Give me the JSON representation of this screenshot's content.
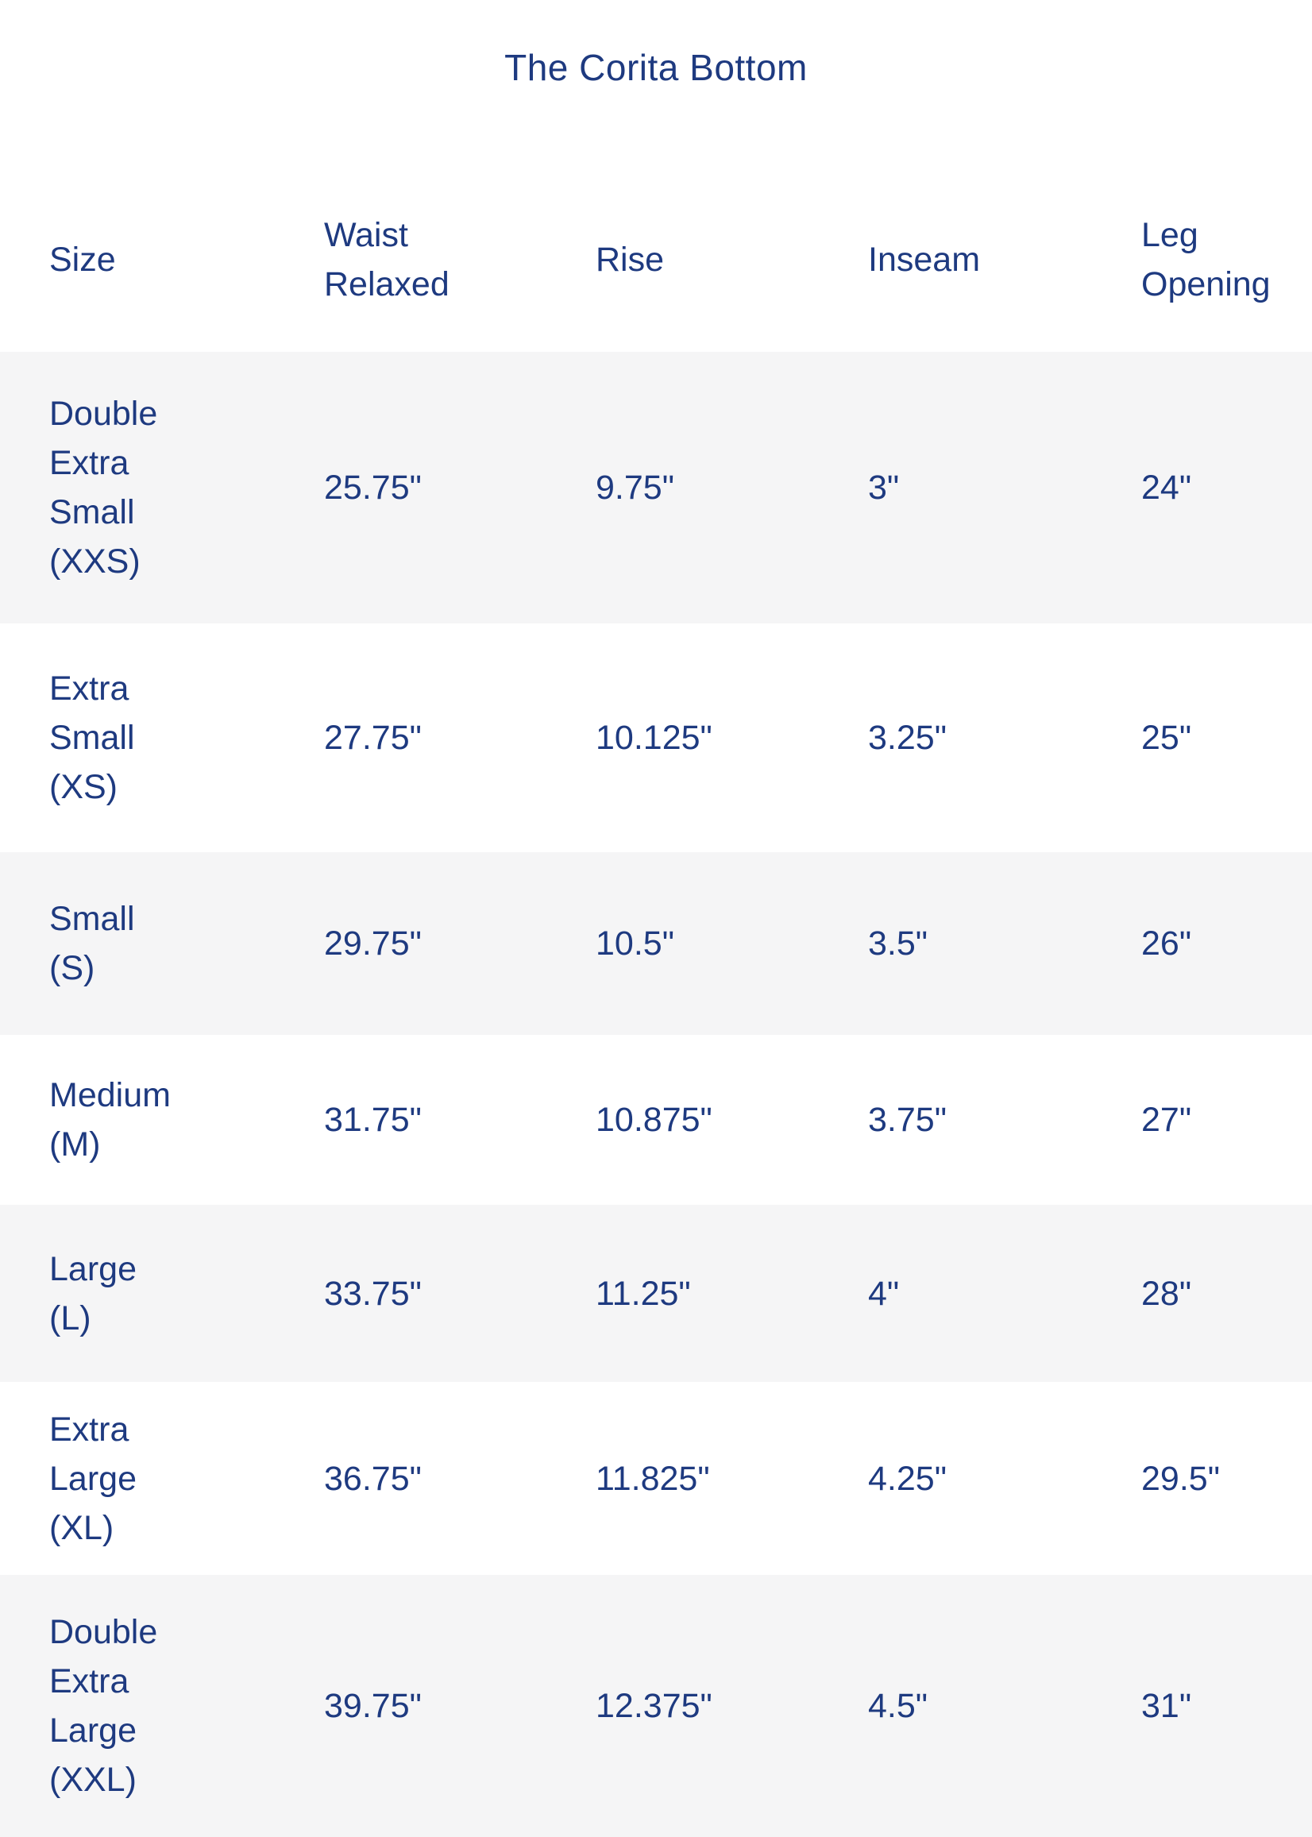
{
  "title": "The Corita Bottom",
  "colors": {
    "text_navy": "#1e3a80",
    "stripe_gray": "#f5f5f6",
    "background": "#ffffff"
  },
  "table": {
    "columns": [
      {
        "label_lines": [
          "Size"
        ]
      },
      {
        "label_lines": [
          "Waist",
          "Relaxed"
        ]
      },
      {
        "label_lines": [
          "Rise"
        ]
      },
      {
        "label_lines": [
          "Inseam"
        ]
      },
      {
        "label_lines": [
          "Leg",
          "Opening"
        ]
      }
    ],
    "rows": [
      {
        "size_lines": [
          "Double",
          "Extra",
          "Small",
          "(XXS)"
        ],
        "waist_relaxed": "25.75\"",
        "rise": "9.75\"",
        "inseam": "3\"",
        "leg_opening": "24\""
      },
      {
        "size_lines": [
          "Extra",
          "Small",
          "(XS)"
        ],
        "waist_relaxed": "27.75\"",
        "rise": "10.125\"",
        "inseam": "3.25\"",
        "leg_opening": "25\""
      },
      {
        "size_lines": [
          "Small",
          "(S)"
        ],
        "waist_relaxed": "29.75\"",
        "rise": "10.5\"",
        "inseam": "3.5\"",
        "leg_opening": "26\""
      },
      {
        "size_lines": [
          "Medium",
          "(M)"
        ],
        "waist_relaxed": "31.75\"",
        "rise": "10.875\"",
        "inseam": "3.75\"",
        "leg_opening": "27\""
      },
      {
        "size_lines": [
          "Large",
          "(L)"
        ],
        "waist_relaxed": "33.75\"",
        "rise": "11.25\"",
        "inseam": "4\"",
        "leg_opening": "28\""
      },
      {
        "size_lines": [
          "Extra",
          "Large",
          "(XL)"
        ],
        "waist_relaxed": "36.75\"",
        "rise": "11.825\"",
        "inseam": "4.25\"",
        "leg_opening": "29.5\""
      },
      {
        "size_lines": [
          "Double",
          "Extra",
          "Large",
          "(XXL)"
        ],
        "waist_relaxed": "39.75\"",
        "rise": "12.375\"",
        "inseam": "4.5\"",
        "leg_opening": "31\""
      }
    ]
  }
}
